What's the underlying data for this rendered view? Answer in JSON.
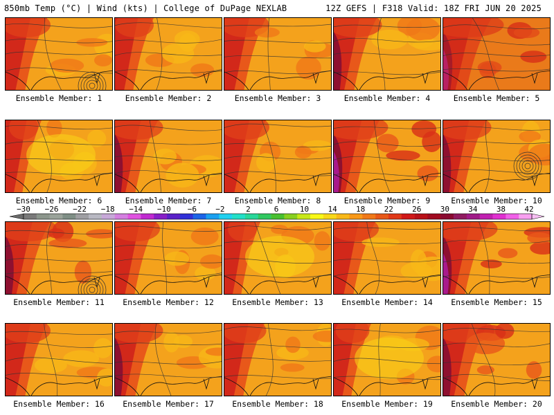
{
  "header": {
    "left": "850mb Temp (°C) | Wind (kts) | College of DuPage NEXLAB",
    "right": "12Z GEFS | F318 Valid: 18Z FRI JUN 20 2025"
  },
  "panels": [
    {
      "label": "Ensemble Member: 1",
      "heat": 1.0,
      "lowCenter": true
    },
    {
      "label": "Ensemble Member: 2",
      "heat": 0.8,
      "lowCenter": false
    },
    {
      "label": "Ensemble Member: 3",
      "heat": 1.0,
      "lowCenter": false
    },
    {
      "label": "Ensemble Member: 4",
      "heat": 1.1,
      "lowCenter": false
    },
    {
      "label": "Ensemble Member: 5",
      "heat": 1.5,
      "lowCenter": false
    },
    {
      "label": "Ensemble Member: 6",
      "heat": 0.6,
      "lowCenter": false
    },
    {
      "label": "Ensemble Member: 7",
      "heat": 1.1,
      "lowCenter": false
    },
    {
      "label": "Ensemble Member: 8",
      "heat": 1.0,
      "lowCenter": false
    },
    {
      "label": "Ensemble Member: 9",
      "heat": 1.3,
      "lowCenter": false
    },
    {
      "label": "Ensemble Member: 10",
      "heat": 1.1,
      "lowCenter": true
    },
    {
      "label": "Ensemble Member: 11",
      "heat": 1.2,
      "lowCenter": true
    },
    {
      "label": "Ensemble Member: 12",
      "heat": 1.0,
      "lowCenter": false
    },
    {
      "label": "Ensemble Member: 13",
      "heat": 0.6,
      "lowCenter": false
    },
    {
      "label": "Ensemble Member: 14",
      "heat": 1.0,
      "lowCenter": false
    },
    {
      "label": "Ensemble Member: 15",
      "heat": 1.3,
      "lowCenter": false
    },
    {
      "label": "Ensemble Member: 16",
      "heat": 1.0,
      "lowCenter": false
    },
    {
      "label": "Ensemble Member: 17",
      "heat": 1.1,
      "lowCenter": false
    },
    {
      "label": "Ensemble Member: 18",
      "heat": 0.9,
      "lowCenter": false
    },
    {
      "label": "Ensemble Member: 19",
      "heat": 0.7,
      "lowCenter": false
    },
    {
      "label": "Ensemble Member: 20",
      "heat": 1.2,
      "lowCenter": false
    }
  ],
  "colorbar": {
    "ticks": [
      "−30",
      "−26",
      "−22",
      "−18",
      "−14",
      "−10",
      "−6",
      "−2",
      "2",
      "6",
      "10",
      "14",
      "18",
      "22",
      "26",
      "30",
      "34",
      "38",
      "42"
    ],
    "colors": [
      "#7a7a7a",
      "#8c968c",
      "#9aa39a",
      "#7f8f86",
      "#9f9fa3",
      "#b8b8c2",
      "#c7a8d8",
      "#d47fe0",
      "#e052e0",
      "#c02ad0",
      "#8820c8",
      "#5a22c8",
      "#3030d8",
      "#1c64e8",
      "#1aa0f0",
      "#20d0f0",
      "#22e0c8",
      "#28d89a",
      "#30c860",
      "#48c030",
      "#88d020",
      "#c8e818",
      "#f8f818",
      "#f8d818",
      "#f8b818",
      "#f89818",
      "#f07818",
      "#e85818",
      "#e03818",
      "#d01818",
      "#b81018",
      "#a00a20",
      "#8a0a30",
      "#901a60",
      "#a01a88",
      "#c020b0",
      "#e030d0",
      "#f060e8",
      "#f8a0f0"
    ]
  }
}
